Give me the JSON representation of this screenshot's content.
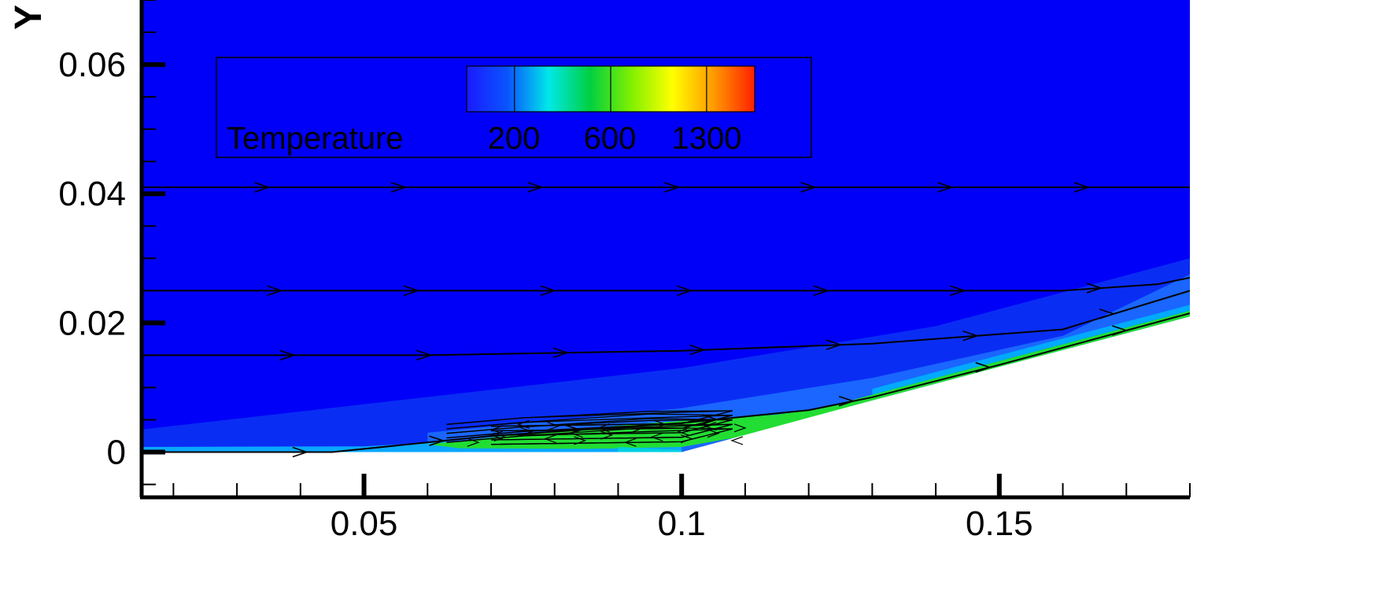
{
  "chart_data": {
    "type": "contour",
    "variable": "Temperature",
    "axes": {
      "x": {
        "title": "",
        "range": [
          0.015,
          0.18
        ],
        "major_ticks": [
          0.05,
          0.1,
          0.15
        ],
        "tick_labels": [
          "0.05",
          "0.1",
          "0.15"
        ],
        "minor_step": 0.01
      },
      "y": {
        "title": "Y",
        "range": [
          -0.007,
          0.07
        ],
        "major_ticks": [
          0,
          0.02,
          0.04,
          0.06
        ],
        "tick_labels": [
          "0",
          "0.02",
          "0.04",
          "0.06"
        ],
        "minor_step": 0.005
      }
    },
    "legend": {
      "title": "Temperature",
      "placement": "top-left",
      "tick_values": [
        200,
        600,
        1300
      ],
      "tick_labels": [
        "200",
        "600",
        "1300"
      ],
      "color_stops": [
        "#1a1aff",
        "#0a55ff",
        "#00e8e8",
        "#00d040",
        "#80f000",
        "#ffff00",
        "#ff9a00",
        "#ff2000"
      ]
    },
    "colors": {
      "freestream": "#0000f8",
      "shock_layer": "#0a2df4",
      "compressed": "#1a66ff",
      "boundary_layer_hot": "#22dd33",
      "boundary_layer_warm": "#00cc88",
      "streamline": "#000000"
    },
    "wall_profile": {
      "x": [
        0.015,
        0.05,
        0.1,
        0.13,
        0.18
      ],
      "y": [
        0,
        0,
        0,
        0.008,
        0.021
      ]
    },
    "streamlines": [
      {
        "x": [
          0.015,
          0.18
        ],
        "y": [
          0.041,
          0.041
        ]
      },
      {
        "x": [
          0.015,
          0.13,
          0.16,
          0.175,
          0.18
        ],
        "y": [
          0.025,
          0.025,
          0.025,
          0.026,
          0.027
        ]
      },
      {
        "x": [
          0.015,
          0.06,
          0.1,
          0.13,
          0.16,
          0.18
        ],
        "y": [
          0.015,
          0.015,
          0.0157,
          0.0168,
          0.019,
          0.025
        ]
      },
      {
        "x": [
          0.015,
          0.045,
          0.07,
          0.1,
          0.12,
          0.13,
          0.15,
          0.18
        ],
        "y": [
          0,
          0,
          0.0025,
          0.0045,
          0.0065,
          0.0085,
          0.0135,
          0.0215
        ]
      }
    ],
    "recirculation_region": {
      "x_range": [
        0.06,
        0.115
      ],
      "y_range": [
        0.001,
        0.005
      ]
    }
  }
}
